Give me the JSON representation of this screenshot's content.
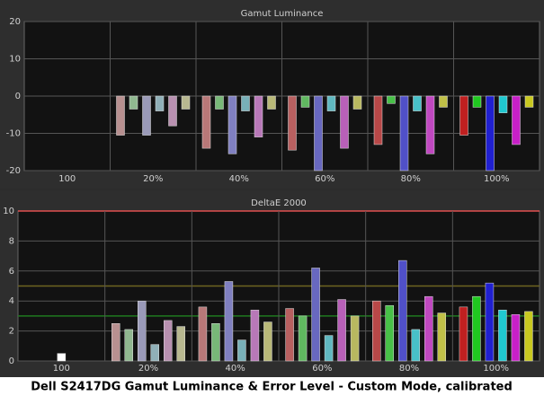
{
  "chart_data": [
    {
      "type": "bar",
      "title": "Gamut Luminance",
      "categories": [
        "100",
        "20%",
        "40%",
        "60%",
        "80%",
        "100%"
      ],
      "ylim": [
        -20,
        20
      ],
      "yticks": [
        -20,
        -10,
        0,
        10,
        20
      ],
      "grid": true,
      "series": [
        {
          "colors": [
            "#ffffff",
            null,
            null,
            null,
            null,
            null
          ],
          "values": [
            0,
            null,
            null,
            null,
            null,
            null
          ]
        },
        {
          "colors": [
            null,
            "#b89090",
            "#b87878",
            "#b86060",
            "#b84848",
            "#c02020"
          ],
          "values": [
            null,
            -10.5,
            -14,
            -14.5,
            -13,
            -10.5
          ]
        },
        {
          "colors": [
            null,
            "#90b890",
            "#78b878",
            "#60b860",
            "#48c048",
            "#20c820"
          ],
          "values": [
            null,
            -3.5,
            -3.5,
            -3,
            -2,
            -3
          ]
        },
        {
          "colors": [
            null,
            "#9a9ab8",
            "#8080c0",
            "#6868c0",
            "#5050c8",
            "#2020d0"
          ],
          "values": [
            null,
            -10.5,
            -15.5,
            -20,
            -20,
            -20
          ]
        },
        {
          "colors": [
            null,
            "#90b0b8",
            "#78b0b8",
            "#60b8c0",
            "#48c0c8",
            "#20c8d0"
          ],
          "values": [
            null,
            -4,
            -4,
            -4,
            -4,
            -4.5
          ]
        },
        {
          "colors": [
            null,
            "#b890b0",
            "#b878b8",
            "#b860b8",
            "#c048c0",
            "#c820c8"
          ],
          "values": [
            null,
            -8,
            -11,
            -14,
            -15.5,
            -13
          ]
        },
        {
          "colors": [
            null,
            "#b8b890",
            "#b8b878",
            "#b8b860",
            "#c0c048",
            "#c8c820"
          ],
          "values": [
            null,
            -3.5,
            -3.5,
            -3.5,
            -3,
            -3
          ]
        }
      ]
    },
    {
      "type": "bar",
      "title": "DeltaE 2000",
      "categories": [
        "100",
        "20%",
        "40%",
        "60%",
        "80%",
        "100%"
      ],
      "ylim": [
        0,
        10
      ],
      "yticks": [
        0,
        2,
        4,
        6,
        8,
        10
      ],
      "grid": true,
      "reference_lines": [
        {
          "value": 10,
          "color": "#e05050"
        },
        {
          "value": 5,
          "color": "#6e6420"
        },
        {
          "value": 3,
          "color": "#1f7a1f"
        }
      ],
      "series": [
        {
          "colors": [
            "#ffffff",
            null,
            null,
            null,
            null,
            null
          ],
          "values": [
            0.5,
            null,
            null,
            null,
            null,
            null
          ]
        },
        {
          "colors": [
            null,
            "#b89090",
            "#b87878",
            "#b86060",
            "#b84848",
            "#c02020"
          ],
          "values": [
            null,
            2.5,
            3.6,
            3.5,
            4.0,
            3.6
          ]
        },
        {
          "colors": [
            null,
            "#90b890",
            "#78b878",
            "#60b860",
            "#48c048",
            "#20c820"
          ],
          "values": [
            null,
            2.1,
            2.5,
            3.0,
            3.7,
            4.3
          ]
        },
        {
          "colors": [
            null,
            "#9a9ab8",
            "#8080c0",
            "#6868c0",
            "#5050c8",
            "#2020d0"
          ],
          "values": [
            null,
            4.0,
            5.3,
            6.2,
            6.7,
            5.2
          ]
        },
        {
          "colors": [
            null,
            "#90b0b8",
            "#78b0b8",
            "#60b8c0",
            "#48c0c8",
            "#20c8d0"
          ],
          "values": [
            null,
            1.1,
            1.4,
            1.7,
            2.1,
            3.4
          ]
        },
        {
          "colors": [
            null,
            "#b890b0",
            "#b878b8",
            "#b860b8",
            "#c048c0",
            "#c820c8"
          ],
          "values": [
            null,
            2.7,
            3.4,
            4.1,
            4.3,
            3.1
          ]
        },
        {
          "colors": [
            null,
            "#b8b890",
            "#b8b878",
            "#b8b860",
            "#c0c048",
            "#c8c820"
          ],
          "values": [
            null,
            2.3,
            2.6,
            3.0,
            3.2,
            3.3
          ]
        }
      ]
    }
  ],
  "caption": "Dell S2417DG Gamut Luminance & Error Level - Custom Mode, calibrated"
}
